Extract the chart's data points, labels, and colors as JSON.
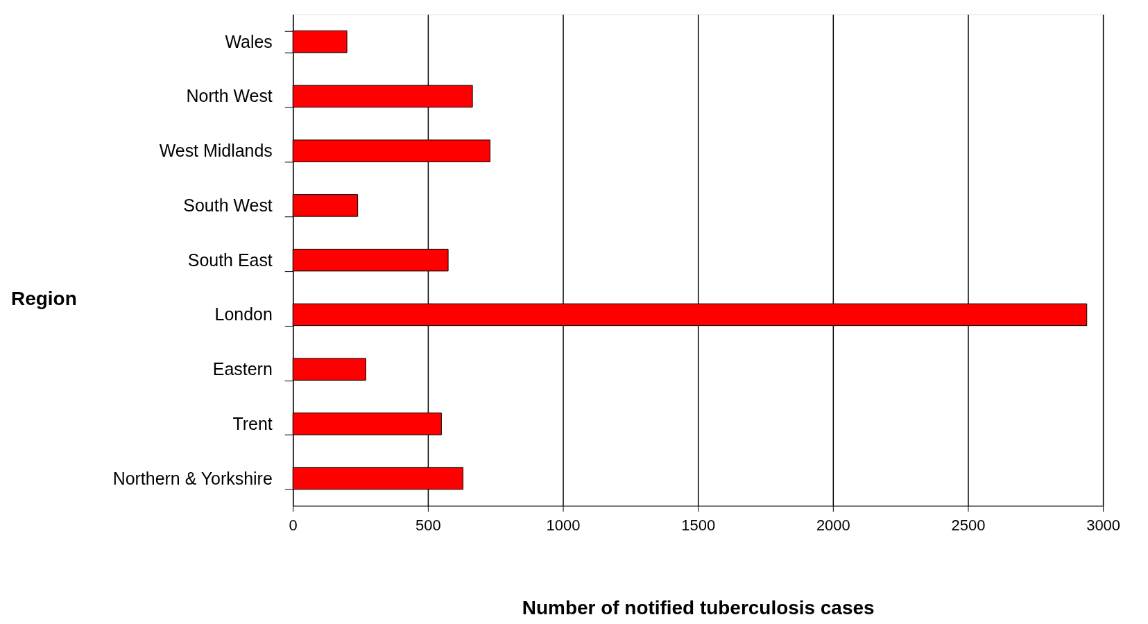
{
  "chart_data": {
    "type": "bar",
    "orientation": "horizontal",
    "categories": [
      "Wales",
      "North West",
      "West Midlands",
      "South West",
      "South East",
      "London",
      "Eastern",
      "Trent",
      "Northern & Yorkshire"
    ],
    "values": [
      200,
      665,
      730,
      240,
      575,
      2940,
      270,
      550,
      630
    ],
    "color": "#ff0000",
    "xlabel": "Number of notified tuberculosis cases",
    "ylabel": "Region",
    "xlim": [
      0,
      3000
    ],
    "xticks": [
      0,
      500,
      1000,
      1500,
      2000,
      2500,
      3000
    ],
    "grid": "x"
  }
}
